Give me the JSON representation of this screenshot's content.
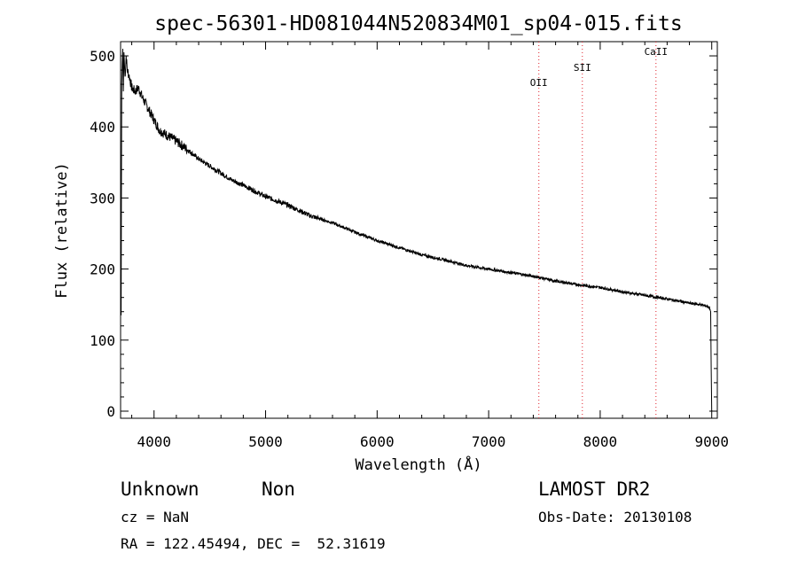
{
  "chart_data": {
    "type": "line",
    "title": "spec-56301-HD081044N520834M01_sp04-015.fits",
    "xlabel": "Wavelength (Å)",
    "ylabel": "Flux (relative)",
    "xlim": [
      3700,
      9050
    ],
    "ylim": [
      -10,
      520
    ],
    "x_ticks": [
      4000,
      5000,
      6000,
      7000,
      8000,
      9000
    ],
    "y_ticks": [
      0,
      100,
      200,
      300,
      400,
      500
    ],
    "grid": false,
    "series": [
      {
        "x": [
          3700,
          3705,
          3710,
          3715,
          3720,
          3725,
          3730,
          3740,
          3750,
          3760,
          3780,
          3800,
          3830,
          3860,
          3900,
          3950,
          4000,
          4050,
          4100,
          4150,
          4200,
          4300,
          4400,
          4500,
          4600,
          4700,
          4800,
          4900,
          5000,
          5200,
          5400,
          5600,
          5800,
          6000,
          6200,
          6400,
          6600,
          6800,
          7000,
          7200,
          7400,
          7600,
          7800,
          8000,
          8200,
          8400,
          8600,
          8800,
          8900,
          8950,
          8980,
          8990,
          8995,
          9000
        ],
        "y": [
          300,
          135,
          460,
          490,
          510,
          450,
          505,
          470,
          500,
          480,
          470,
          455,
          450,
          455,
          440,
          425,
          410,
          395,
          390,
          385,
          380,
          368,
          355,
          345,
          335,
          325,
          318,
          310,
          302,
          290,
          275,
          265,
          252,
          240,
          230,
          220,
          213,
          205,
          200,
          195,
          190,
          183,
          178,
          174,
          168,
          163,
          158,
          152,
          150,
          148,
          146,
          140,
          60,
          0
        ]
      }
    ],
    "lines": [
      {
        "name": "OII",
        "x": 7450
      },
      {
        "name": "SII",
        "x": 7840
      },
      {
        "name": "CaII",
        "x": 8500
      }
    ]
  },
  "info": {
    "class": "Unknown",
    "subclass": "Non",
    "survey": "LAMOST DR2",
    "cz": "cz = NaN",
    "obs_date": "Obs-Date: 20130108",
    "coords": "RA = 122.45494, DEC =  52.31619"
  },
  "colors": {
    "spectrum": "#000000",
    "line_markers": "#e0202a"
  }
}
